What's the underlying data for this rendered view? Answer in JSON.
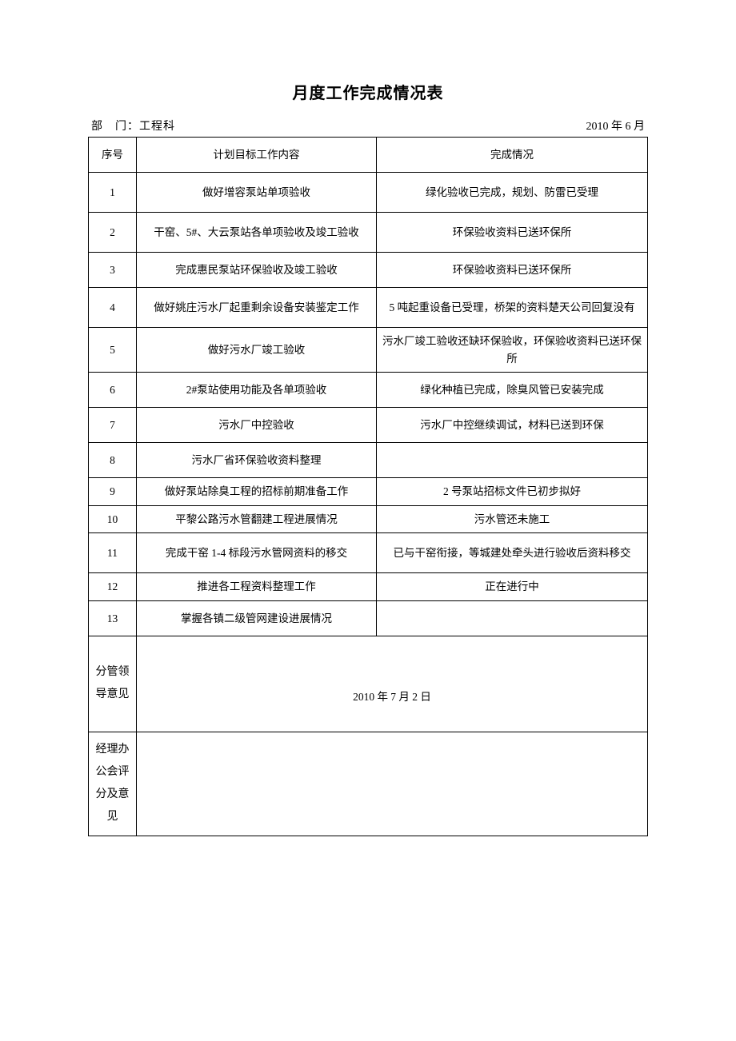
{
  "title": "月度工作完成情况表",
  "meta": {
    "dept_label": "部　门：",
    "dept_value": "工程科",
    "date_label": "2010 年 6 月"
  },
  "headers": {
    "idx": "序号",
    "plan": "计划目标工作内容",
    "status": "完成情况"
  },
  "rows": [
    {
      "idx": "1",
      "plan": "做好增容泵站单项验收",
      "status": "绿化验收已完成，规划、防雷已受理",
      "cls": "row-tall"
    },
    {
      "idx": "2",
      "plan": "干窑、5#、大云泵站各单项验收及竣工验收",
      "status": "环保验收资料已送环保所",
      "cls": "row-tall"
    },
    {
      "idx": "3",
      "plan": "完成惠民泵站环保验收及竣工验收",
      "status": "环保验收资料已送环保所",
      "cls": "row-med"
    },
    {
      "idx": "4",
      "plan": "做好姚庄污水厂起重剩余设备安装鉴定工作",
      "status": "5 吨起重设备已受理，桥架的资料楚天公司回复没有",
      "cls": "row-tall"
    },
    {
      "idx": "5",
      "plan": "做好污水厂竣工验收",
      "status": "污水厂竣工验收还缺环保验收，环保验收资料已送环保所",
      "cls": "row-tall"
    },
    {
      "idx": "6",
      "plan": "2#泵站使用功能及各单项验收",
      "status": "绿化种植已完成，除臭风管已安装完成",
      "cls": "row-med"
    },
    {
      "idx": "7",
      "plan": "污水厂中控验收",
      "status": "污水厂中控继续调试，材料已送到环保",
      "cls": "row-med"
    },
    {
      "idx": "8",
      "plan": "污水厂省环保验收资料整理",
      "status": "",
      "cls": "row-med"
    },
    {
      "idx": "9",
      "plan": "做好泵站除臭工程的招标前期准备工作",
      "status": "2 号泵站招标文件已初步拟好",
      "cls": "row-short"
    },
    {
      "idx": "10",
      "plan": "平黎公路污水管翻建工程进展情况",
      "status": "污水管还未施工",
      "cls": "row-short"
    },
    {
      "idx": "11",
      "plan": "完成干窑 1-4 标段污水管网资料的移交",
      "status": "已与干窑衔接，等城建处牵头进行验收后资料移交",
      "cls": "row-tall"
    },
    {
      "idx": "12",
      "plan": "推进各工程资料整理工作",
      "status": "正在进行中",
      "cls": "row-short"
    },
    {
      "idx": "13",
      "plan": "掌握各镇二级管网建设进展情况",
      "status": "",
      "cls": "row-med"
    }
  ],
  "footer": {
    "leader_label": "分管领导意见",
    "leader_date": "2010 年 7 月 2 日",
    "manager_label": "经理办公会评分及意见"
  },
  "style": {
    "border_color": "#000000",
    "background": "#ffffff",
    "font_family": "SimSun",
    "title_fontsize": 20,
    "body_fontsize": 13.5,
    "col_widths": {
      "idx": 60,
      "plan": 300
    }
  }
}
